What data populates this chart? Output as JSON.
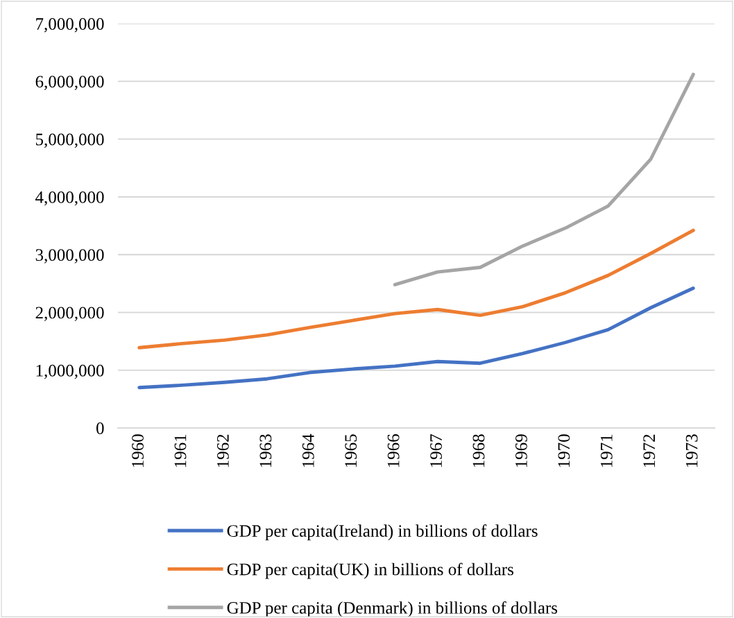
{
  "chart_data": {
    "type": "line",
    "categories": [
      "1960",
      "1961",
      "1962",
      "1963",
      "1964",
      "1965",
      "1966",
      "1967",
      "1968",
      "1969",
      "1970",
      "1971",
      "1972",
      "1973"
    ],
    "series": [
      {
        "name": "GDP per capita(Ireland) in billions of dollars",
        "color": "#4472c4",
        "values": [
          700000,
          740000,
          790000,
          850000,
          960000,
          1020000,
          1070000,
          1150000,
          1120000,
          1290000,
          1480000,
          1700000,
          2080000,
          2420000
        ]
      },
      {
        "name": "GDP per capita(UK) in billions of dollars",
        "color": "#ed7d31",
        "values": [
          1390000,
          1460000,
          1520000,
          1610000,
          1740000,
          1860000,
          1980000,
          2050000,
          1950000,
          2100000,
          2340000,
          2640000,
          3020000,
          3420000
        ]
      },
      {
        "name": "GDP per capita (Denmark) in billions of dollars",
        "color": "#a5a5a5",
        "values": [
          null,
          null,
          null,
          null,
          null,
          null,
          2480000,
          2700000,
          2780000,
          3150000,
          3460000,
          3840000,
          4650000,
          6120000
        ]
      }
    ],
    "ylim": [
      0,
      7000000
    ],
    "yticks": [
      {
        "value": 0,
        "label": "0"
      },
      {
        "value": 1000000,
        "label": "1,000,000"
      },
      {
        "value": 2000000,
        "label": "2,000,000"
      },
      {
        "value": 3000000,
        "label": "3,000,000"
      },
      {
        "value": 4000000,
        "label": "4,000,000"
      },
      {
        "value": 5000000,
        "label": "5,000,000"
      },
      {
        "value": 6000000,
        "label": "6,000,000"
      },
      {
        "value": 7000000,
        "label": "7,000,000"
      }
    ],
    "grid": "y",
    "legend": "bottom",
    "marker": "none",
    "line_style": "solid"
  }
}
